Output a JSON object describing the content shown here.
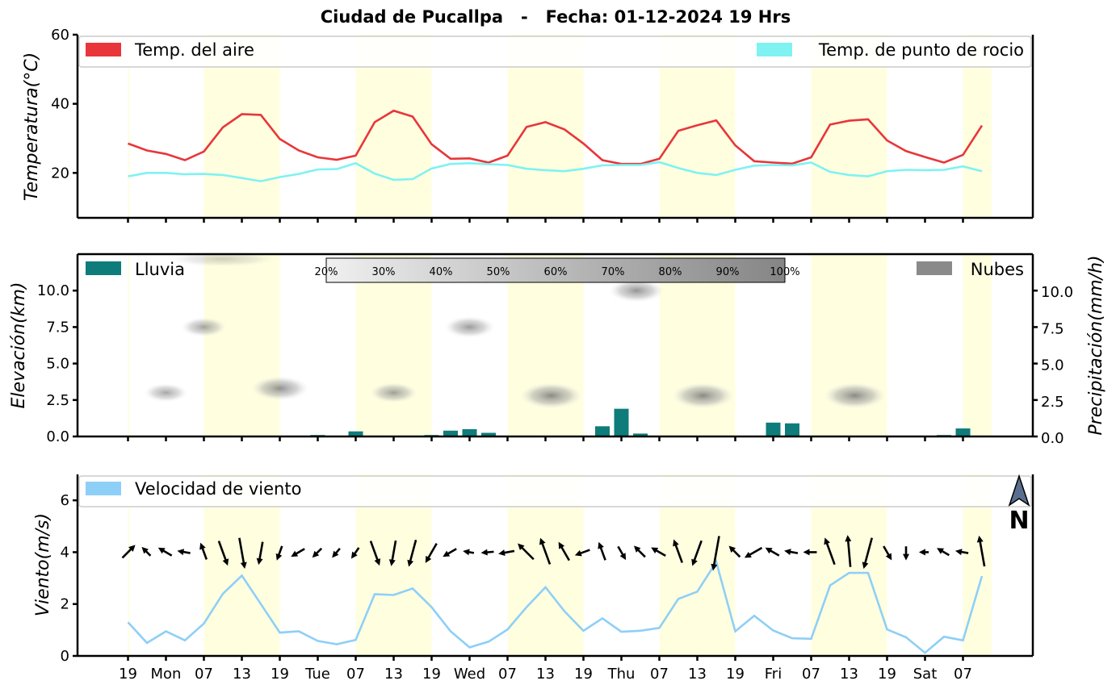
{
  "title": "Ciudad de Pucallpa   -   Fecha: 01-12-2024 19 Hrs",
  "chart_data": [
    {
      "type": "line",
      "name": "temperature",
      "ylabel": "Temperatura(°C)",
      "ylim": [
        7,
        60
      ],
      "yticks": [
        20,
        40,
        60
      ],
      "x_index": [
        0,
        1,
        2,
        3,
        4,
        5,
        6,
        7,
        8,
        9,
        10,
        11,
        12,
        13,
        14,
        15,
        16,
        17,
        18,
        19,
        20,
        21,
        22,
        23,
        24,
        25,
        26,
        27,
        28,
        29,
        30,
        31,
        32,
        33,
        34,
        35,
        36,
        37,
        38,
        39,
        40,
        41,
        42,
        43,
        44,
        45
      ],
      "series": [
        {
          "name": "Temp. del aire",
          "color": "#e8363a",
          "values": [
            28.5,
            26.5,
            25.5,
            23.7,
            26.2,
            33.2,
            37,
            36.8,
            29.8,
            26.5,
            24.5,
            23.8,
            25,
            34.7,
            38,
            36.3,
            28.3,
            24.1,
            24.2,
            23,
            25,
            33.3,
            34.7,
            32.6,
            28.5,
            23.7,
            22.6,
            22.6,
            24.1,
            32.2,
            33.8,
            35.2,
            28,
            23.4,
            23,
            22.7,
            24.5,
            34,
            35.1,
            35.5,
            29.4,
            26.3,
            24.6,
            23,
            25.2,
            33.7
          ]
        },
        {
          "name": "Temp. de punto de rocio",
          "color": "#7ff2f2",
          "values": [
            19,
            20,
            20,
            19.6,
            19.7,
            19.4,
            18.5,
            17.6,
            18.8,
            19.7,
            21,
            21.1,
            22.8,
            19.8,
            18,
            18.2,
            21.3,
            22.6,
            22.8,
            22.5,
            22.3,
            21.2,
            20.8,
            20.5,
            21.2,
            22.2,
            22.3,
            22.3,
            23.1,
            21.4,
            20,
            19.4,
            20.9,
            22.1,
            22.3,
            22.2,
            23,
            20.3,
            19.4,
            19,
            20.5,
            20.9,
            20.8,
            20.9,
            21.9,
            20.5
          ]
        }
      ]
    },
    {
      "type": "bar",
      "name": "rain-clouds",
      "ylabel_left": "Elevación(km)",
      "ylabel_right": "Precipitación(mm/h)",
      "ylim": [
        0,
        12.5
      ],
      "yticks_left": [
        "0.0",
        "2.5",
        "5.0",
        "7.5",
        "10.0"
      ],
      "yticks_right": [
        "0.0",
        "2.5",
        "5.0",
        "7.5",
        "10.0"
      ],
      "series": [
        {
          "name": "Lluvia",
          "color": "#0e7c7b",
          "values": [
            0,
            0,
            0,
            0,
            0,
            0,
            0,
            0,
            0,
            0.05,
            0.1,
            0,
            0.35,
            0,
            0,
            0,
            0.1,
            0.4,
            0.5,
            0.25,
            0,
            0,
            0.05,
            0,
            0.05,
            0.7,
            1.9,
            0.2,
            0,
            0,
            0,
            0,
            0.05,
            0,
            0.95,
            0.9,
            0,
            0,
            0,
            0,
            0.05,
            0,
            0,
            0.1,
            0.55,
            0
          ]
        }
      ],
      "clouds": [
        {
          "name": "Nubes",
          "x": 4,
          "elev": 7.5,
          "cover": 0.35
        },
        {
          "name": "Nubes",
          "x": 2,
          "elev": 3.0,
          "cover": 0.3
        },
        {
          "name": "Nubes",
          "x": 8,
          "elev": 3.3,
          "cover": 0.6
        },
        {
          "name": "Nubes",
          "x": 14,
          "elev": 3.0,
          "cover": 0.4
        },
        {
          "name": "Nubes",
          "x": 18,
          "elev": 7.5,
          "cover": 0.45
        },
        {
          "name": "Nubes",
          "x": 22.3,
          "elev": 2.8,
          "cover": 0.7
        },
        {
          "name": "Nubes",
          "x": 26.8,
          "elev": 10.0,
          "cover": 0.55
        },
        {
          "name": "Nubes",
          "x": 30.3,
          "elev": 2.8,
          "cover": 0.7
        },
        {
          "name": "Nubes",
          "x": 38.3,
          "elev": 2.8,
          "cover": 0.7
        }
      ],
      "colorbar_labels": [
        "20%",
        "30%",
        "40%",
        "50%",
        "60%",
        "70%",
        "80%",
        "90%",
        "100%"
      ]
    },
    {
      "type": "line",
      "name": "wind",
      "ylabel": "Viento(m/s)",
      "ylim": [
        0,
        7
      ],
      "yticks": [
        0,
        2,
        4,
        6
      ],
      "series": [
        {
          "name": "Velocidad de viento",
          "color": "#8ecff7",
          "values": [
            1.3,
            0.5,
            0.95,
            0.6,
            1.25,
            2.4,
            3.1,
            2,
            0.9,
            0.95,
            0.58,
            0.45,
            0.62,
            2.38,
            2.35,
            2.6,
            1.88,
            0.95,
            0.33,
            0.55,
            1.02,
            1.88,
            2.65,
            1.72,
            0.97,
            1.45,
            0.93,
            0.97,
            1.08,
            2.2,
            2.48,
            3.62,
            0.95,
            1.55,
            0.98,
            0.68,
            0.66,
            2.72,
            3.2,
            3.2,
            1.02,
            0.72,
            0.12,
            0.74,
            0.6,
            3.08
          ]
        }
      ],
      "wind_dir_deg": [
        225,
        135,
        120,
        100,
        160,
        340,
        350,
        10,
        20,
        60,
        45,
        40,
        35,
        340,
        10,
        15,
        30,
        60,
        100,
        85,
        80,
        135,
        160,
        150,
        70,
        160,
        330,
        135,
        120,
        160,
        20,
        10,
        135,
        60,
        120,
        100,
        90,
        160,
        175,
        15,
        330,
        0,
        90,
        120,
        100,
        170
      ],
      "compass_label": "N"
    }
  ],
  "xaxis": {
    "tick_labels": [
      "19",
      "Mon",
      "07",
      "13",
      "19",
      "Tue",
      "07",
      "13",
      "19",
      "Wed",
      "07",
      "13",
      "19",
      "Thu",
      "07",
      "13",
      "19",
      "Fri",
      "07",
      "13",
      "19",
      "Sat",
      "07"
    ],
    "tick_index": [
      0,
      2,
      4,
      6,
      8,
      10,
      12,
      14,
      16,
      18,
      20,
      22,
      24,
      26,
      28,
      30,
      32,
      34,
      36,
      38,
      40,
      42,
      44
    ],
    "daylight_bands": [
      [
        0,
        0
      ],
      [
        4,
        8
      ],
      [
        12,
        16
      ],
      [
        20,
        24
      ],
      [
        28,
        32
      ],
      [
        36,
        40
      ],
      [
        44,
        45.5
      ]
    ]
  },
  "colors": {
    "daylight": "#ffffe0",
    "arrow": "#000000"
  }
}
